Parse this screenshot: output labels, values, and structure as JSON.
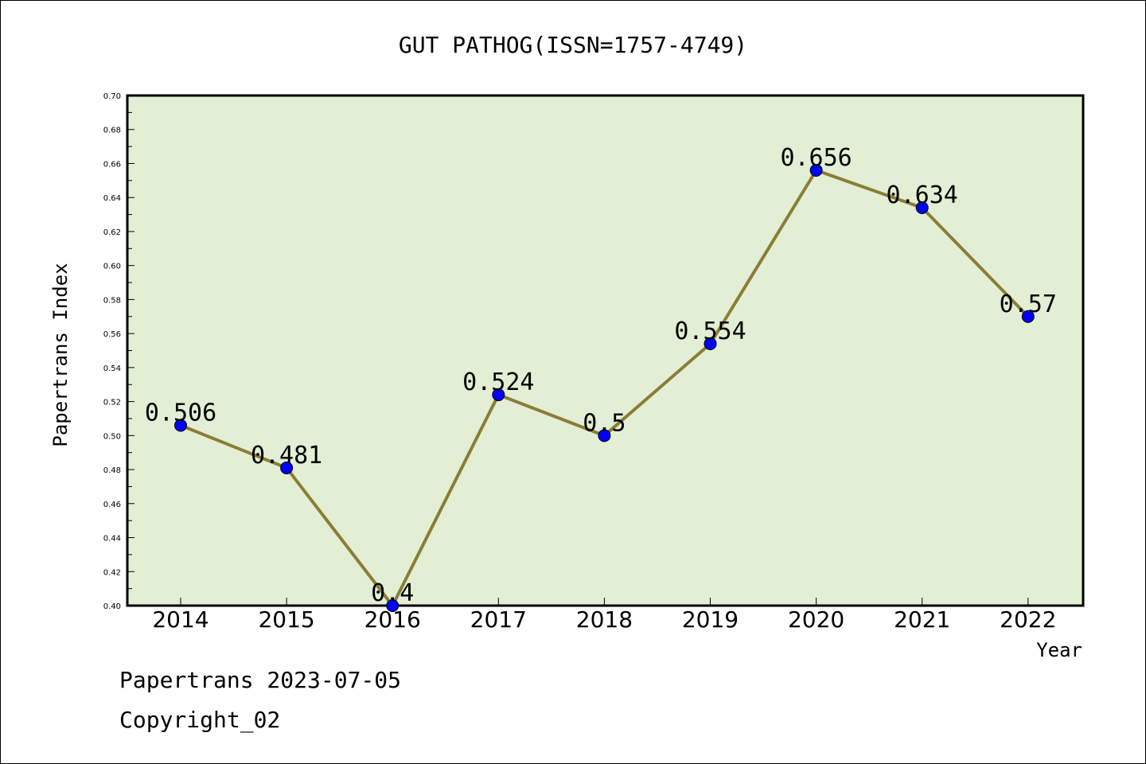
{
  "chart_data": {
    "type": "line",
    "title": "GUT PATHOG(ISSN=1757-4749)",
    "xlabel": "Year",
    "ylabel": "Papertrans Index",
    "categories": [
      "2014",
      "2015",
      "2016",
      "2017",
      "2018",
      "2019",
      "2020",
      "2021",
      "2022"
    ],
    "series": [
      {
        "values": [
          0.506,
          0.481,
          0.4,
          0.524,
          0.5,
          0.554,
          0.656,
          0.634,
          0.57
        ],
        "labels": [
          "0.506",
          "0.481",
          "0.4",
          "0.524",
          "0.5",
          "0.554",
          "0.656",
          "0.634",
          "0.57"
        ]
      }
    ],
    "ylim": [
      0.4,
      0.7
    ],
    "yticks": [
      "0.40",
      "0.42",
      "0.44",
      "0.46",
      "0.48",
      "0.50",
      "0.52",
      "0.54",
      "0.56",
      "0.58",
      "0.60",
      "0.62",
      "0.64",
      "0.66",
      "0.68",
      "0.70"
    ],
    "grid": false,
    "colors": {
      "plot_background": "#e2efd5",
      "line": "#8b7d35",
      "marker": "#0000ff"
    }
  },
  "footer": {
    "date_line": "Papertrans 2023-07-05",
    "copyright": "Copyright_02"
  }
}
